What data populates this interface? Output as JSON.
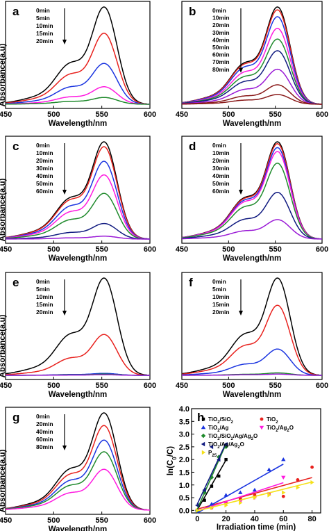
{
  "figure_colors": {
    "black": "#000000",
    "red": "#e8211d",
    "blue": "#1a34e0",
    "magenta": "#ff1ae0",
    "green": "#1f8a2c",
    "navy": "#101a80",
    "purple": "#9a1ad6",
    "maroon": "#8a1a1a",
    "pink": "#ff5ad6",
    "yellow": "#f5e11a",
    "orange": "#ff8a1a"
  },
  "chart_data": [
    {
      "id": "a",
      "panel_label": "a",
      "type": "line",
      "xlabel": "Wavelength/nm",
      "ylabel": "Absorbance(a.u)",
      "xlim": [
        450,
        600
      ],
      "xticks": [
        450,
        500,
        550,
        600
      ],
      "arrow": "down",
      "series": [
        {
          "name": "0min",
          "color": "#000000",
          "peak": 1.0
        },
        {
          "name": "5min",
          "color": "#e8211d",
          "peak": 0.73
        },
        {
          "name": "10min",
          "color": "#1a34e0",
          "peak": 0.42
        },
        {
          "name": "15min",
          "color": "#ff1ae0",
          "peak": 0.18
        },
        {
          "name": "20min",
          "color": "#1f8a2c",
          "peak": 0.07
        }
      ]
    },
    {
      "id": "b",
      "panel_label": "b",
      "type": "line",
      "xlabel": "Wavelength/nm",
      "ylabel": "",
      "xlim": [
        450,
        600
      ],
      "xticks": [
        450,
        500,
        550,
        600
      ],
      "arrow": "down",
      "series": [
        {
          "name": "0min",
          "color": "#000000",
          "peak": 1.0
        },
        {
          "name": "10min",
          "color": "#e8211d",
          "peak": 0.97
        },
        {
          "name": "20min",
          "color": "#1a34e0",
          "peak": 0.9
        },
        {
          "name": "30min",
          "color": "#ff1ae0",
          "peak": 0.78
        },
        {
          "name": "40min",
          "color": "#1f8a2c",
          "peak": 0.67
        },
        {
          "name": "50min",
          "color": "#101a80",
          "peak": 0.55
        },
        {
          "name": "60min",
          "color": "#9a1ad6",
          "peak": 0.36
        },
        {
          "name": "70min",
          "color": "#8a1a1a",
          "peak": 0.2
        },
        {
          "name": "80min",
          "color": "#8a1a1a",
          "peak": 0.1
        }
      ]
    },
    {
      "id": "c",
      "panel_label": "c",
      "type": "line",
      "xlabel": "Wavelength/nm",
      "ylabel": "Absorbance(a.u)",
      "xlim": [
        450,
        600
      ],
      "xticks": [
        450,
        500,
        550,
        600
      ],
      "arrow": "down",
      "series": [
        {
          "name": "0min",
          "color": "#000000",
          "peak": 1.0
        },
        {
          "name": "10min",
          "color": "#e8211d",
          "peak": 0.95
        },
        {
          "name": "20min",
          "color": "#1a34e0",
          "peak": 0.8
        },
        {
          "name": "30min",
          "color": "#ff1ae0",
          "peak": 0.66
        },
        {
          "name": "40min",
          "color": "#1f8a2c",
          "peak": 0.47
        },
        {
          "name": "50min",
          "color": "#101a80",
          "peak": 0.16
        },
        {
          "name": "60min",
          "color": "#9a1ad6",
          "peak": 0.03
        }
      ]
    },
    {
      "id": "d",
      "panel_label": "d",
      "type": "line",
      "xlabel": "Wavelength/nm",
      "ylabel": "",
      "xlim": [
        450,
        600
      ],
      "xticks": [
        450,
        500,
        550,
        600
      ],
      "arrow": "down",
      "series": [
        {
          "name": "0min",
          "color": "#000000",
          "peak": 1.0
        },
        {
          "name": "10min",
          "color": "#e8211d",
          "peak": 0.98
        },
        {
          "name": "20min",
          "color": "#1a34e0",
          "peak": 0.94
        },
        {
          "name": "30min",
          "color": "#ff1ae0",
          "peak": 0.9
        },
        {
          "name": "40min",
          "color": "#1f8a2c",
          "peak": 0.78
        },
        {
          "name": "50min",
          "color": "#101a80",
          "peak": 0.48
        },
        {
          "name": "60min",
          "color": "#9a1ad6",
          "peak": 0.2
        }
      ]
    },
    {
      "id": "e",
      "panel_label": "e",
      "type": "line",
      "xlabel": "Wavelength/nm",
      "ylabel": "Absorbance(a.u)",
      "xlim": [
        450,
        600
      ],
      "xticks": [
        450,
        500,
        550,
        600
      ],
      "arrow": "down",
      "series": [
        {
          "name": "0min",
          "color": "#000000",
          "peak": 1.0
        },
        {
          "name": "5min",
          "color": "#e8211d",
          "peak": 0.42
        },
        {
          "name": "10min",
          "color": "#1a34e0",
          "peak": 0.02
        },
        {
          "name": "15min",
          "color": "#1f8a2c",
          "peak": 0.012
        },
        {
          "name": "20min",
          "color": "#9a1ad6",
          "peak": 0.006
        }
      ]
    },
    {
      "id": "f",
      "panel_label": "f",
      "type": "line",
      "xlabel": "Wavelength/nm",
      "ylabel": "",
      "xlim": [
        450,
        600
      ],
      "xticks": [
        450,
        500,
        550,
        600
      ],
      "arrow": "down",
      "series": [
        {
          "name": "0min",
          "color": "#000000",
          "peak": 1.0
        },
        {
          "name": "5min",
          "color": "#e8211d",
          "peak": 0.72
        },
        {
          "name": "10min",
          "color": "#1a34e0",
          "peak": 0.27
        },
        {
          "name": "15min",
          "color": "#1f8a2c",
          "peak": 0.025
        },
        {
          "name": "20min",
          "color": "#9a1ad6",
          "peak": 0.012
        }
      ]
    },
    {
      "id": "g",
      "panel_label": "g",
      "type": "line",
      "xlabel": "Wavelength/nm",
      "ylabel": "Absorbance(a.u)",
      "xlim": [
        450,
        600
      ],
      "xticks": [
        450,
        500,
        550,
        600
      ],
      "arrow": "down",
      "series": [
        {
          "name": "0min",
          "color": "#000000",
          "peak": 1.0
        },
        {
          "name": "20min",
          "color": "#e8211d",
          "peak": 0.87
        },
        {
          "name": "40min",
          "color": "#1a34e0",
          "peak": 0.72
        },
        {
          "name": "60min",
          "color": "#1f8a2c",
          "peak": 0.6
        },
        {
          "name": "80min",
          "color": "#ff1ae0",
          "peak": 0.42
        }
      ]
    },
    {
      "id": "h",
      "panel_label": "h",
      "type": "scatter",
      "xlabel": "Irradiation time (min)",
      "ylabel": "ln(C0/C)",
      "xlim": [
        -4,
        86
      ],
      "ylim": [
        -0.1,
        4.0
      ],
      "xticks": [
        0,
        20,
        40,
        60,
        80
      ],
      "yticks": [
        0.0,
        0.5,
        1.0,
        1.5,
        2.0,
        2.5,
        3.0,
        3.5,
        4.0
      ],
      "yticklabels": [
        "0.0",
        "0.5",
        "1.0",
        "1.5",
        "2.0",
        "2.5",
        "3.0",
        "3.5",
        "4.0"
      ],
      "legend": "top-left, two columns",
      "series": [
        {
          "name": "TiO2/SiO2",
          "color": "#000000",
          "marker": "square",
          "x": [
            0,
            5,
            10,
            15,
            20
          ],
          "y": [
            0.0,
            0.4,
            0.95,
            1.35,
            2.0
          ],
          "fit": [
            0.02,
            0.098
          ]
        },
        {
          "name": "TiO2",
          "color": "#e8211d",
          "marker": "circle",
          "x": [
            0,
            10,
            20,
            30,
            40,
            50,
            60,
            70,
            80
          ],
          "y": [
            0.0,
            0.1,
            0.3,
            0.45,
            0.6,
            0.65,
            0.55,
            1.2,
            1.7
          ],
          "fit": [
            0.05,
            0.0155
          ]
        },
        {
          "name": "TiO2/Ag",
          "color": "#1a34e0",
          "marker": "triangle-up",
          "x": [
            0,
            10,
            20,
            30,
            40,
            50,
            60
          ],
          "y": [
            0.0,
            0.25,
            0.6,
            0.7,
            0.8,
            1.6,
            2.0
          ],
          "fit": [
            -0.1,
            0.032
          ]
        },
        {
          "name": "TiO2/Ag2O",
          "color": "#ff1ae0",
          "marker": "triangle-down",
          "x": [
            0,
            10,
            20,
            30,
            40,
            50,
            60
          ],
          "y": [
            0.0,
            0.1,
            0.25,
            0.35,
            0.5,
            0.65,
            1.3
          ],
          "fit": [
            -0.02,
            0.0185
          ]
        },
        {
          "name": "TiO2/SiO2/Ag/Ag2O",
          "color": "#1f8a2c",
          "marker": "diamond",
          "x": [
            0,
            5,
            10,
            15,
            20
          ],
          "y": [
            0.0,
            0.7,
            1.3,
            2.1,
            2.5
          ],
          "fit": [
            0.05,
            0.128
          ]
        },
        {
          "name": "TiO2/Ag/Ag2O",
          "color": "#101a80",
          "marker": "triangle-left",
          "x": [
            0,
            5,
            10,
            15,
            20
          ],
          "y": [
            0.2,
            0.8,
            2.5,
            2.0,
            2.6
          ],
          "fit": [
            0.25,
            0.12
          ]
        },
        {
          "name": "P25",
          "color": "#f5e11a",
          "marker": "triangle-right",
          "x": [
            0,
            10,
            20,
            30,
            40,
            50,
            60,
            70,
            80
          ],
          "y": [
            0.0,
            0.1,
            0.2,
            0.3,
            0.5,
            0.6,
            0.7,
            0.9,
            1.1
          ],
          "fit": [
            -0.02,
            0.0142
          ]
        }
      ]
    }
  ]
}
